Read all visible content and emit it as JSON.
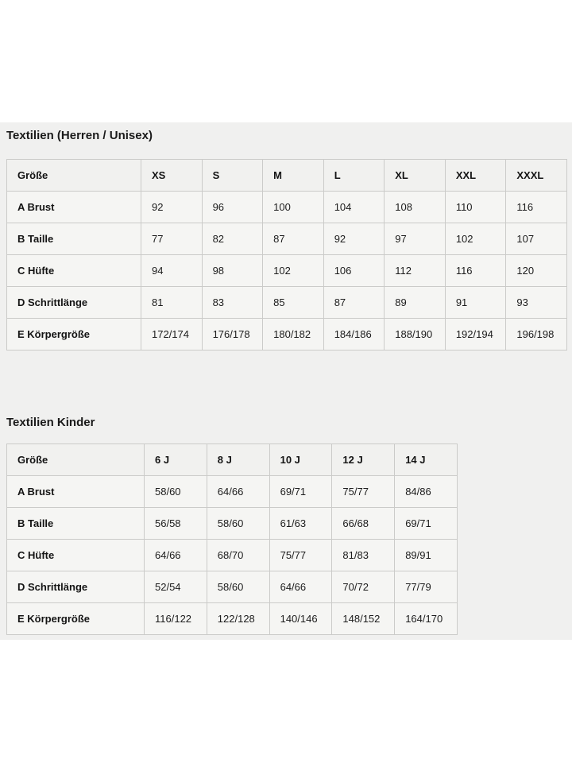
{
  "page": {
    "band_background": "#f0f0ef",
    "cell_background": "#f5f5f3",
    "border_color": "#cbcbc9",
    "text_color": "#1a1a1a"
  },
  "sections": [
    {
      "title": "Textilien (Herren / Unisex)",
      "table": {
        "header": [
          "Größe",
          "XS",
          "S",
          "M",
          "L",
          "XL",
          "XXL",
          "XXXL"
        ],
        "rows": [
          {
            "label": "A Brust",
            "values": [
              "92",
              "96",
              "100",
              "104",
              "108",
              "110",
              "116"
            ]
          },
          {
            "label": "B Taille",
            "values": [
              "77",
              "82",
              "87",
              "92",
              "97",
              "102",
              "107"
            ]
          },
          {
            "label": "C Hüfte",
            "values": [
              "94",
              "98",
              "102",
              "106",
              "112",
              "116",
              "120"
            ]
          },
          {
            "label": "D Schrittlänge",
            "values": [
              "81",
              "83",
              "85",
              "87",
              "89",
              "91",
              "93"
            ]
          },
          {
            "label": "E Körpergröße",
            "values": [
              "172/174",
              "176/178",
              "180/182",
              "184/186",
              "188/190",
              "192/194",
              "196/198"
            ]
          }
        ]
      }
    },
    {
      "title": "Textilien Kinder",
      "table": {
        "header": [
          "Größe",
          "6 J",
          "8 J",
          "10 J",
          "12 J",
          "14 J"
        ],
        "rows": [
          {
            "label": "A Brust",
            "values": [
              "58/60",
              "64/66",
              "69/71",
              "75/77",
              "84/86"
            ]
          },
          {
            "label": "B Taille",
            "values": [
              "56/58",
              "58/60",
              "61/63",
              "66/68",
              "69/71"
            ]
          },
          {
            "label": "C Hüfte",
            "values": [
              "64/66",
              "68/70",
              "75/77",
              "81/83",
              "89/91"
            ]
          },
          {
            "label": "D Schrittlänge",
            "values": [
              "52/54",
              "58/60",
              "64/66",
              "70/72",
              "77/79"
            ]
          },
          {
            "label": "E Körpergröße",
            "values": [
              "116/122",
              "122/128",
              "140/146",
              "148/152",
              "164/170"
            ]
          }
        ]
      }
    }
  ]
}
